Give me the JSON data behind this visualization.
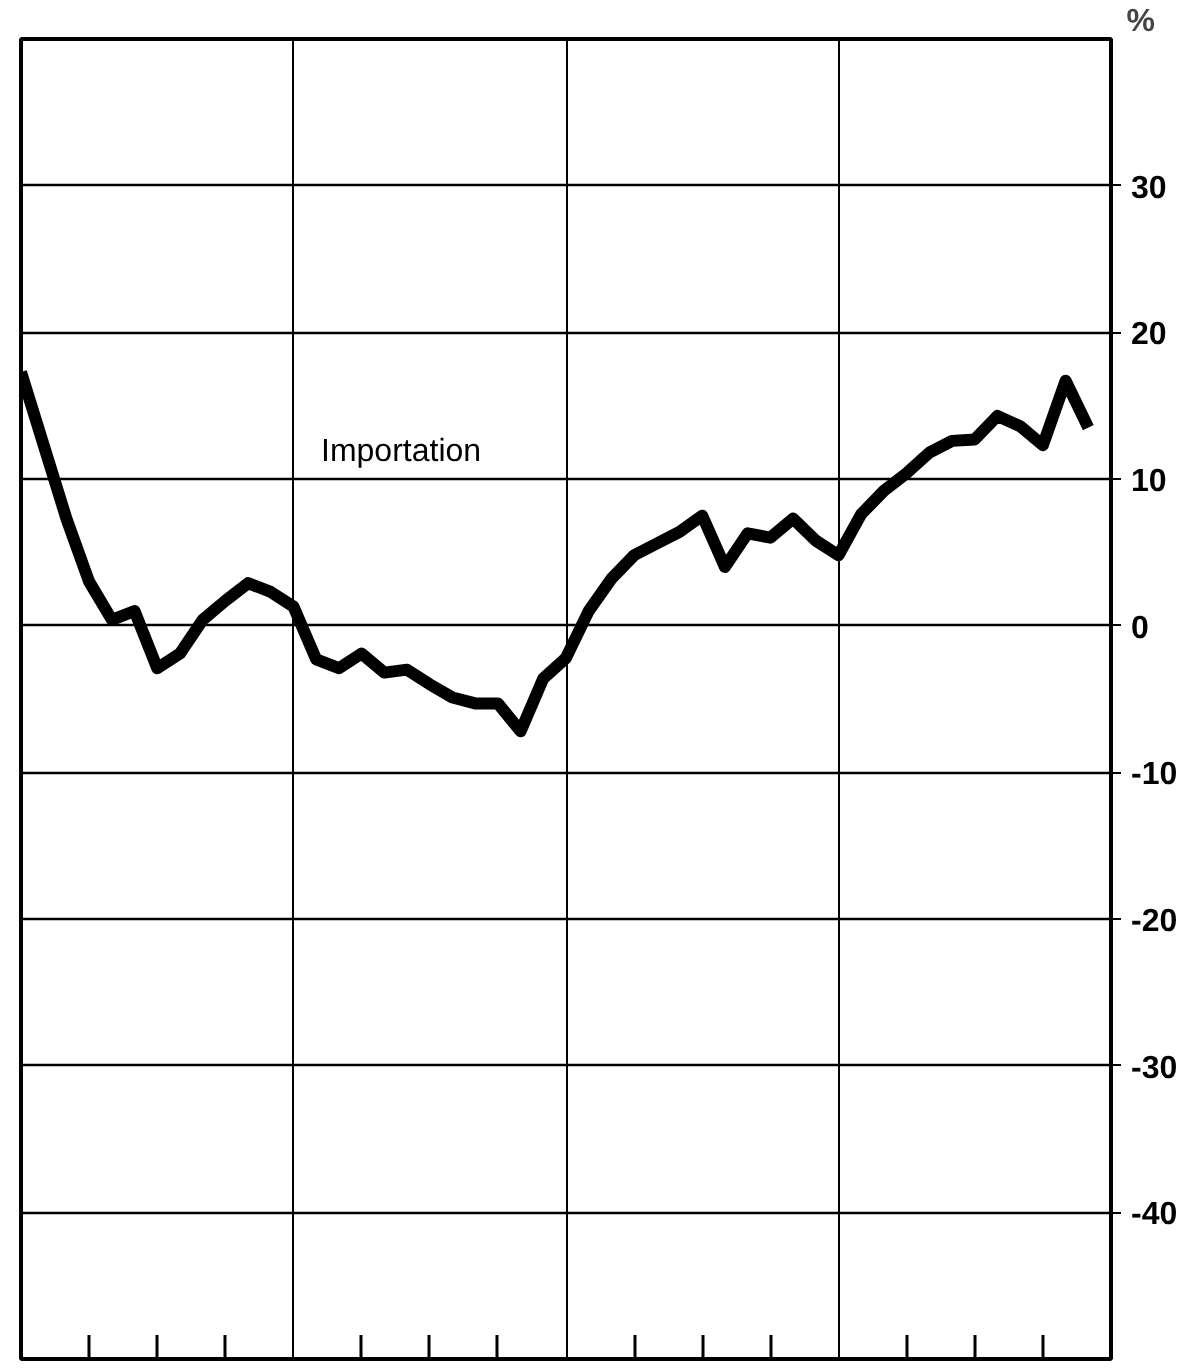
{
  "chart_data": {
    "type": "line",
    "ylabel": "%",
    "categories": [
      null,
      null,
      null,
      null,
      null,
      null,
      null,
      null,
      null,
      null,
      null,
      null,
      null,
      null,
      null,
      null,
      null,
      null,
      null,
      null,
      null,
      null,
      null,
      null,
      null,
      null,
      null,
      null,
      null,
      null,
      null,
      null,
      null,
      null,
      null,
      null,
      null,
      null,
      null,
      null,
      null,
      null,
      null,
      null,
      null,
      null,
      null,
      null
    ],
    "series": [
      {
        "name": "Importation",
        "color": "#000000",
        "values": [
          17.3,
          12.3,
          7.3,
          3.0,
          0.4,
          1.0,
          -2.9,
          -1.9,
          0.4,
          1.7,
          2.9,
          2.3,
          1.3,
          -2.3,
          -2.9,
          -1.9,
          -3.2,
          -3.0,
          -4.0,
          -4.9,
          -5.3,
          -5.3,
          -7.2,
          -3.6,
          -2.2,
          1.0,
          3.2,
          4.8,
          5.6,
          6.4,
          7.5,
          4.0,
          6.3,
          6.0,
          7.3,
          5.8,
          4.8,
          7.6,
          9.2,
          10.4,
          11.8,
          12.6,
          12.7,
          14.3,
          13.6,
          12.3,
          16.7,
          13.5
        ]
      }
    ],
    "ylim": [
      -50,
      40
    ],
    "yticks": [
      -40,
      -30,
      -20,
      -10,
      0,
      10,
      20,
      30
    ],
    "grid": true,
    "marker": "none",
    "line_style": "solid"
  }
}
